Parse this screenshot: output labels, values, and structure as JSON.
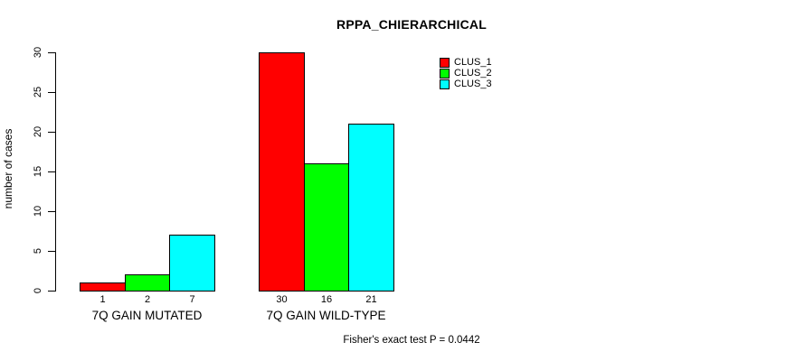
{
  "chart_data": {
    "type": "bar",
    "title": "RPPA_CHIERARCHICAL",
    "ylabel": "number of cases",
    "xlabel": "",
    "ylim": [
      0,
      30
    ],
    "yticks": [
      0,
      5,
      10,
      15,
      20,
      25,
      30
    ],
    "grid": false,
    "categories": [
      "7Q GAIN MUTATED",
      "7Q GAIN WILD-TYPE"
    ],
    "series": [
      {
        "name": "CLUS_1",
        "color": "#FF0000",
        "values": [
          1,
          30
        ]
      },
      {
        "name": "CLUS_2",
        "color": "#00FF00",
        "values": [
          2,
          16
        ]
      },
      {
        "name": "CLUS_3",
        "color": "#00FFFF",
        "values": [
          7,
          21
        ]
      }
    ],
    "bar_value_labels": [
      [
        1,
        2,
        7
      ],
      [
        30,
        16,
        21
      ]
    ],
    "legend_position": "top-right",
    "annotation": "Fisher's exact test P = 0.0442",
    "background": "#FFFFFF",
    "bar_border_color": "#000000",
    "text_color": "#000000"
  }
}
